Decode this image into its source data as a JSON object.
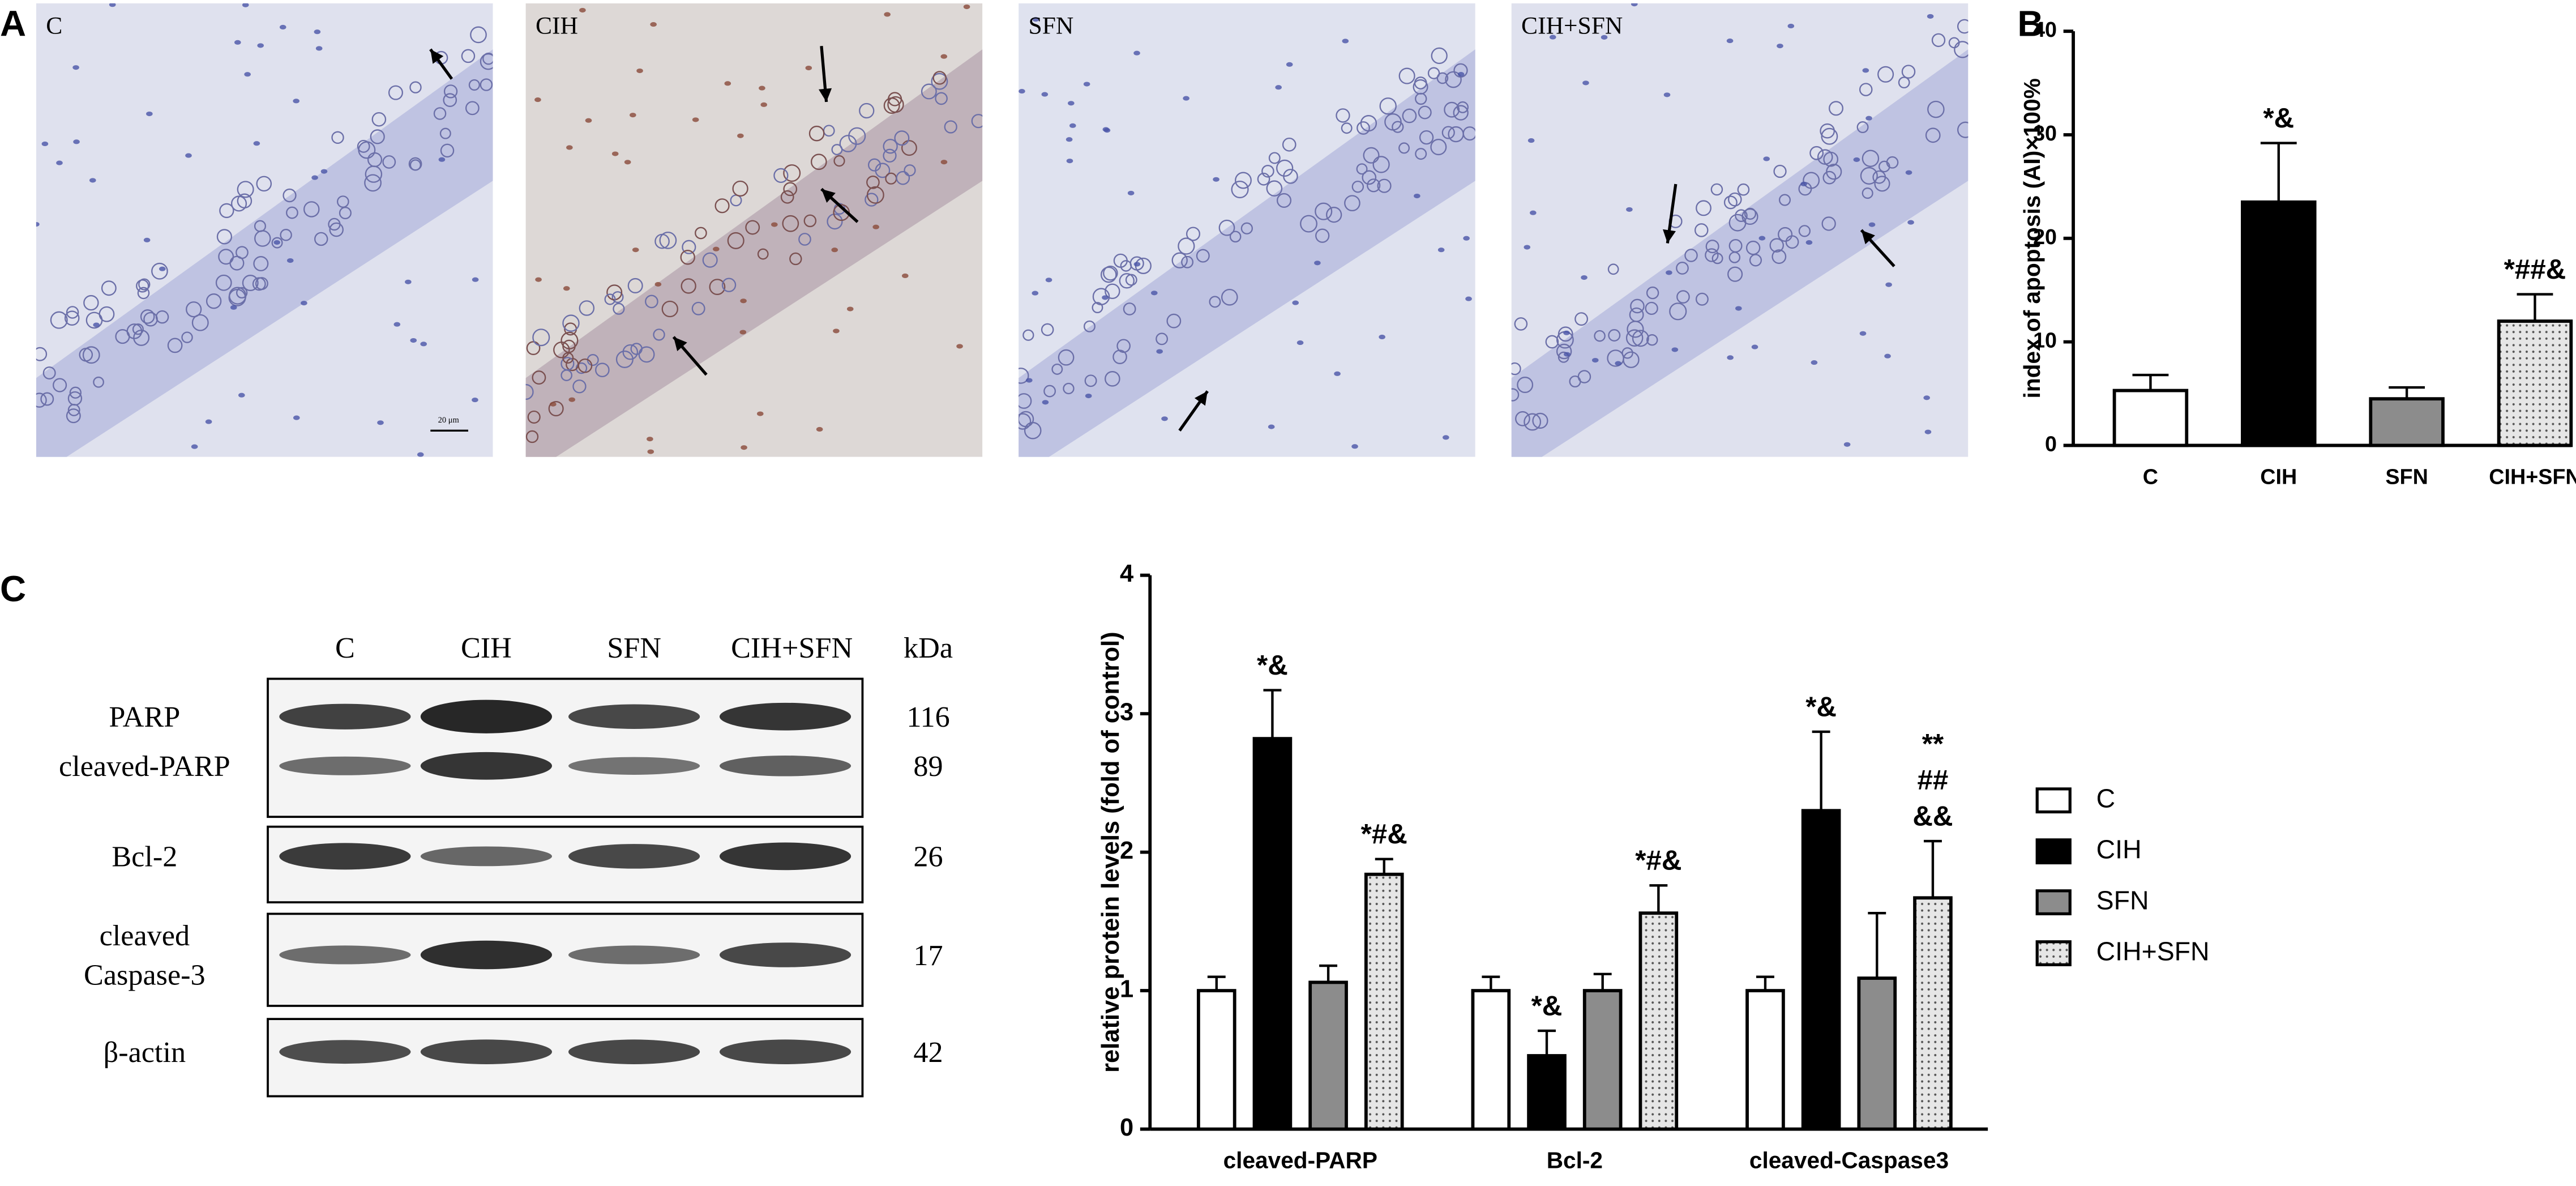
{
  "panel_labels": [
    "A",
    "B",
    "C"
  ],
  "micrographs": {
    "labels": [
      "C",
      "CIH",
      "SFN",
      "CIH+SFN"
    ],
    "scale_bar": "20 μm"
  },
  "blot": {
    "lanes": [
      "C",
      "CIH",
      "SFN",
      "CIH+SFN"
    ],
    "unit": "kDa",
    "rows": [
      {
        "label": [
          "PARP"
        ],
        "kda": 116
      },
      {
        "label": [
          "cleaved-PARP"
        ],
        "kda": 89
      },
      {
        "label": [
          "Bcl-2"
        ],
        "kda": 26
      },
      {
        "label": [
          "cleaved",
          "Caspase-3"
        ],
        "kda": 17
      },
      {
        "label": [
          "β-actin"
        ],
        "kda": 42
      }
    ]
  },
  "chart_data": [
    {
      "type": "bar",
      "y_label": "index of apoptosis (AI)×100%",
      "categories": [
        "C",
        "CIH",
        "SFN",
        "CIH+SFN"
      ],
      "values": [
        5.3,
        23.5,
        4.5,
        12
      ],
      "errors": [
        1.5,
        5.7,
        1.1,
        2.6
      ],
      "annotations": [
        null,
        "*&",
        null,
        "*##&"
      ],
      "colors": [
        "#ffffff",
        "#000000",
        "#8c8c8c",
        "#d9d9d9"
      ],
      "patterns": [
        "solid",
        "solid",
        "solid",
        "dots"
      ],
      "ylim": [
        0,
        40
      ],
      "yticks": [
        0,
        10,
        20,
        30,
        40
      ]
    },
    {
      "type": "grouped_bar",
      "y_label": "relative protein levels (fold of control)",
      "categories": [
        "cleaved-PARP",
        "Bcl-2",
        "cleaved-Caspase3"
      ],
      "series": [
        {
          "name": "C",
          "color": "#ffffff",
          "pattern": "solid",
          "values": [
            1.0,
            1.0,
            1.0
          ],
          "errors": [
            0.1,
            0.1,
            0.1
          ],
          "annotations": [
            null,
            null,
            null
          ]
        },
        {
          "name": "CIH",
          "color": "#000000",
          "pattern": "solid",
          "values": [
            2.82,
            0.53,
            2.3
          ],
          "errors": [
            0.35,
            0.18,
            0.57
          ],
          "annotations": [
            [
              "*&"
            ],
            [
              "*&"
            ],
            [
              "*&"
            ]
          ]
        },
        {
          "name": "SFN",
          "color": "#8c8c8c",
          "pattern": "solid",
          "values": [
            1.06,
            1.0,
            1.09
          ],
          "errors": [
            0.12,
            0.12,
            0.47
          ],
          "annotations": [
            null,
            null,
            null
          ]
        },
        {
          "name": "CIH+SFN",
          "color": "#d9d9d9",
          "pattern": "dots",
          "values": [
            1.84,
            1.56,
            1.67
          ],
          "errors": [
            0.11,
            0.2,
            0.41
          ],
          "annotations": [
            [
              "*#&"
            ],
            [
              "*#&"
            ],
            [
              "**",
              "##",
              "&&"
            ]
          ]
        }
      ],
      "ylim": [
        0,
        4
      ],
      "yticks": [
        0,
        1,
        2,
        3,
        4
      ],
      "legend": "right"
    }
  ]
}
